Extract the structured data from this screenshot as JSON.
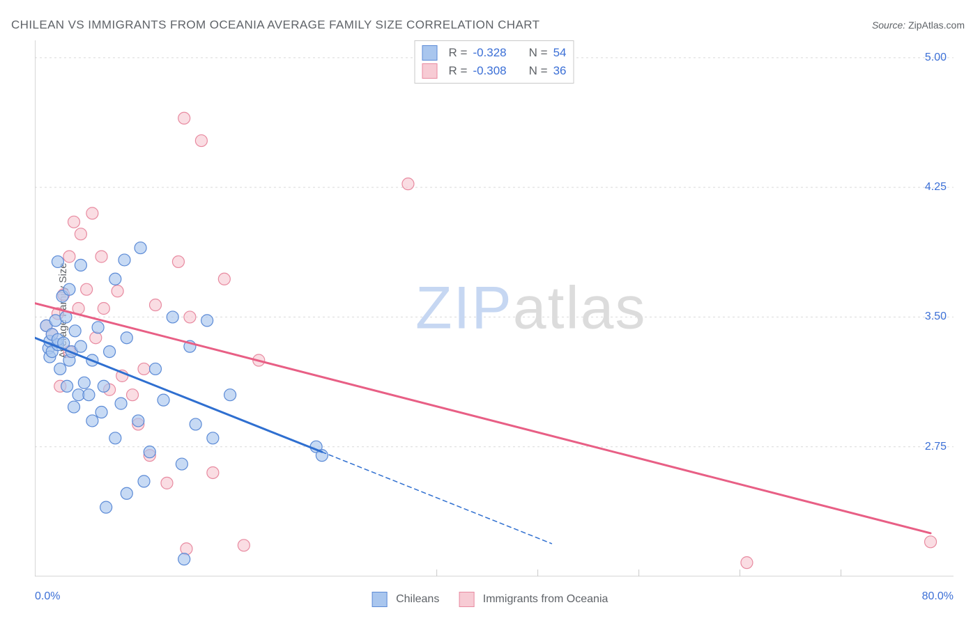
{
  "title": "CHILEAN VS IMMIGRANTS FROM OCEANIA AVERAGE FAMILY SIZE CORRELATION CHART",
  "source_label": "Source:",
  "source_value": "ZipAtlas.com",
  "y_axis_label": "Average Family Size",
  "watermark_a": "ZIP",
  "watermark_b": "atlas",
  "colors": {
    "series_a_fill": "#a9c6ee",
    "series_a_stroke": "#5b8ad6",
    "series_a_line": "#2f6fd0",
    "series_b_fill": "#f7cbd4",
    "series_b_stroke": "#e88aa0",
    "series_b_line": "#e85f85",
    "grid": "#d9d9d9",
    "axis": "#c9c9c9",
    "tick_text": "#3b6fd6",
    "text": "#5f6368",
    "bg": "#ffffff"
  },
  "chart": {
    "type": "scatter-with-regression",
    "xlim": [
      0,
      80
    ],
    "ylim": [
      2.0,
      5.1
    ],
    "x_ticks": [
      0,
      80
    ],
    "x_tick_labels": [
      "0.0%",
      "80.0%"
    ],
    "y_ticks": [
      2.75,
      3.5,
      4.25,
      5.0
    ],
    "y_tick_labels": [
      "2.75",
      "3.50",
      "4.25",
      "5.00"
    ],
    "x_minor_ticks": [
      35.0,
      43.8,
      52.6,
      61.4,
      70.2
    ],
    "marker_radius": 8.5,
    "marker_opacity": 0.65,
    "line_width": 3,
    "dash_pattern": "6,5"
  },
  "legend_top": {
    "rows": [
      {
        "series": "a",
        "r_label": "R =",
        "r_value": "-0.328",
        "n_label": "N =",
        "n_value": "54"
      },
      {
        "series": "b",
        "r_label": "R =",
        "r_value": "-0.308",
        "n_label": "N =",
        "n_value": "36"
      }
    ]
  },
  "legend_bottom": {
    "a": "Chileans",
    "b": "Immigrants from Oceania"
  },
  "series_a": {
    "points": [
      [
        1.0,
        3.45
      ],
      [
        1.2,
        3.32
      ],
      [
        1.3,
        3.36
      ],
      [
        1.3,
        3.27
      ],
      [
        1.5,
        3.4
      ],
      [
        1.5,
        3.3
      ],
      [
        1.8,
        3.48
      ],
      [
        2.0,
        3.82
      ],
      [
        2.0,
        3.34
      ],
      [
        2.0,
        3.37
      ],
      [
        2.2,
        3.2
      ],
      [
        2.4,
        3.62
      ],
      [
        2.5,
        3.35
      ],
      [
        2.7,
        3.5
      ],
      [
        2.8,
        3.1
      ],
      [
        3.0,
        3.25
      ],
      [
        3.0,
        3.66
      ],
      [
        3.2,
        3.3
      ],
      [
        3.4,
        2.98
      ],
      [
        3.5,
        3.42
      ],
      [
        3.8,
        3.05
      ],
      [
        4.0,
        3.33
      ],
      [
        4.0,
        3.8
      ],
      [
        4.3,
        3.12
      ],
      [
        4.7,
        3.05
      ],
      [
        5.0,
        3.25
      ],
      [
        5.0,
        2.9
      ],
      [
        5.5,
        3.44
      ],
      [
        5.8,
        2.95
      ],
      [
        6.0,
        3.1
      ],
      [
        6.2,
        2.4
      ],
      [
        6.5,
        3.3
      ],
      [
        7.0,
        2.8
      ],
      [
        7.0,
        3.72
      ],
      [
        7.5,
        3.0
      ],
      [
        7.8,
        3.83
      ],
      [
        8.0,
        2.48
      ],
      [
        8.0,
        3.38
      ],
      [
        9.0,
        2.9
      ],
      [
        9.2,
        3.9
      ],
      [
        9.5,
        2.55
      ],
      [
        10.0,
        2.72
      ],
      [
        10.5,
        3.2
      ],
      [
        11.2,
        3.02
      ],
      [
        12.0,
        3.5
      ],
      [
        12.8,
        2.65
      ],
      [
        13.5,
        3.33
      ],
      [
        14.0,
        2.88
      ],
      [
        15.0,
        3.48
      ],
      [
        15.5,
        2.8
      ],
      [
        13.0,
        2.1
      ],
      [
        17.0,
        3.05
      ],
      [
        24.5,
        2.75
      ],
      [
        25.0,
        2.7
      ]
    ],
    "regression_solid": {
      "x1": 0,
      "y1": 3.38,
      "x2": 25,
      "y2": 2.72
    },
    "regression_dashed": {
      "x1": 25,
      "y1": 2.72,
      "x2": 45,
      "y2": 2.19
    }
  },
  "series_b": {
    "points": [
      [
        1.0,
        3.45
      ],
      [
        1.5,
        3.4
      ],
      [
        2.0,
        3.52
      ],
      [
        2.2,
        3.1
      ],
      [
        2.5,
        3.63
      ],
      [
        3.0,
        3.85
      ],
      [
        3.0,
        3.3
      ],
      [
        3.4,
        4.05
      ],
      [
        3.8,
        3.55
      ],
      [
        4.0,
        3.98
      ],
      [
        4.5,
        3.66
      ],
      [
        5.0,
        4.1
      ],
      [
        5.3,
        3.38
      ],
      [
        5.8,
        3.85
      ],
      [
        6.0,
        3.55
      ],
      [
        6.5,
        3.08
      ],
      [
        7.2,
        3.65
      ],
      [
        7.6,
        3.16
      ],
      [
        8.5,
        3.05
      ],
      [
        9.0,
        2.88
      ],
      [
        9.5,
        3.2
      ],
      [
        10.0,
        2.7
      ],
      [
        10.5,
        3.57
      ],
      [
        11.5,
        2.54
      ],
      [
        12.5,
        3.82
      ],
      [
        13.0,
        4.65
      ],
      [
        13.2,
        2.16
      ],
      [
        13.5,
        3.5
      ],
      [
        14.5,
        4.52
      ],
      [
        15.5,
        2.6
      ],
      [
        16.5,
        3.72
      ],
      [
        18.2,
        2.18
      ],
      [
        19.5,
        3.25
      ],
      [
        32.5,
        4.27
      ],
      [
        62.0,
        2.08
      ],
      [
        78.0,
        2.2
      ]
    ],
    "regression_solid": {
      "x1": 0,
      "y1": 3.58,
      "x2": 78,
      "y2": 2.25
    }
  }
}
